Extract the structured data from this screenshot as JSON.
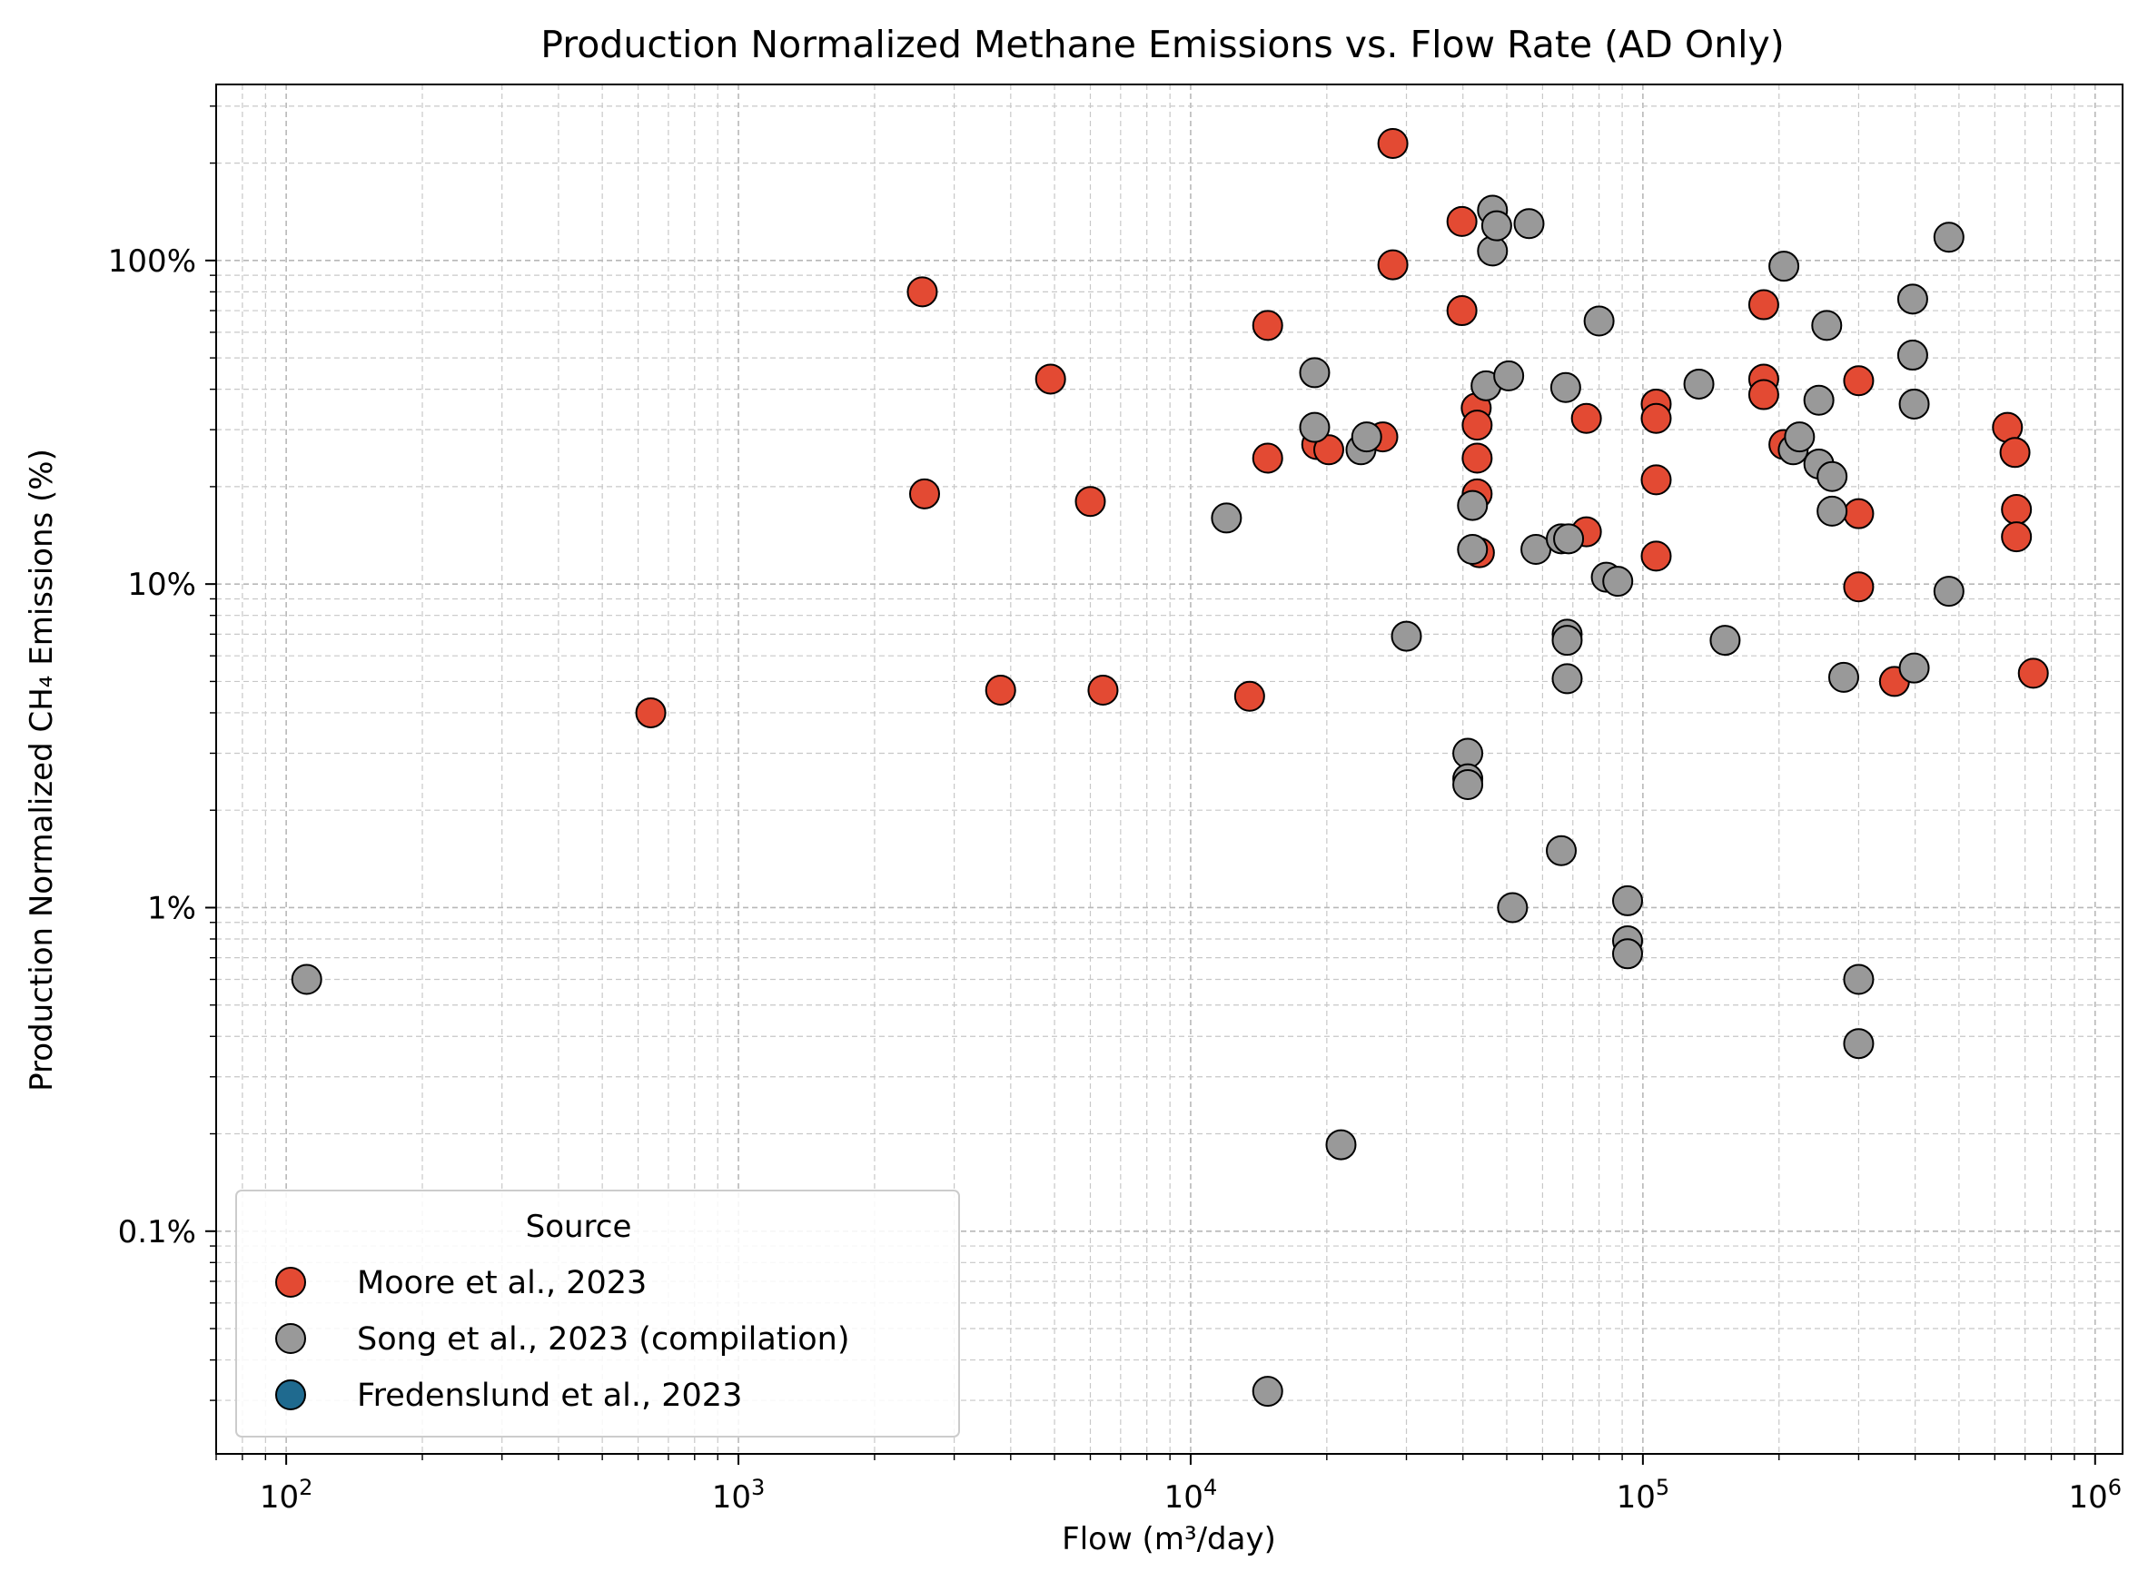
{
  "chart_data": {
    "type": "scatter",
    "title": "Production Normalized Methane Emissions vs. Flow Rate (AD Only)",
    "xlabel": "Flow (m³/day)",
    "ylabel": "Production Normalized CH₄ Emissions (%)",
    "xscale": "log",
    "yscale": "log",
    "xlim": [
      70,
      1150000
    ],
    "ylim": [
      0.0205,
      350
    ],
    "grid": true,
    "x_ticks": [
      {
        "value": 100,
        "base": "10",
        "exp": "2"
      },
      {
        "value": 1000,
        "base": "10",
        "exp": "3"
      },
      {
        "value": 10000,
        "base": "10",
        "exp": "4"
      },
      {
        "value": 100000,
        "base": "10",
        "exp": "5"
      },
      {
        "value": 1000000,
        "base": "10",
        "exp": "6"
      }
    ],
    "y_ticks": [
      {
        "value": 0.1,
        "label": "0.1%"
      },
      {
        "value": 1,
        "label": "1%"
      },
      {
        "value": 10,
        "label": "10%"
      },
      {
        "value": 100,
        "label": "100%"
      }
    ],
    "legend": {
      "title": "Source",
      "position": "lower-left"
    },
    "series": [
      {
        "name": "Moore et al., 2023",
        "color": "#e34a33",
        "points": [
          [
            640,
            4.0
          ],
          [
            2550,
            80
          ],
          [
            2580,
            19
          ],
          [
            3800,
            4.7
          ],
          [
            4900,
            43
          ],
          [
            6000,
            18
          ],
          [
            6400,
            4.7
          ],
          [
            13500,
            4.5
          ],
          [
            14800,
            63
          ],
          [
            14800,
            24.5
          ],
          [
            19000,
            27
          ],
          [
            20200,
            26
          ],
          [
            26600,
            28.5
          ],
          [
            28000,
            230
          ],
          [
            28000,
            97
          ],
          [
            39800,
            132
          ],
          [
            39800,
            70
          ],
          [
            42800,
            35
          ],
          [
            43000,
            31
          ],
          [
            43000,
            24.5
          ],
          [
            43000,
            19
          ],
          [
            43500,
            12.5
          ],
          [
            75000,
            32.5
          ],
          [
            75000,
            14.5
          ],
          [
            107000,
            36
          ],
          [
            107000,
            32.5
          ],
          [
            107000,
            21
          ],
          [
            107000,
            12.2
          ],
          [
            185000,
            73
          ],
          [
            185000,
            43
          ],
          [
            185000,
            38.5
          ],
          [
            205000,
            27
          ],
          [
            300000,
            42.5
          ],
          [
            300000,
            16.5
          ],
          [
            300000,
            9.8
          ],
          [
            360000,
            5.0
          ],
          [
            640000,
            30.5
          ],
          [
            665000,
            25.5
          ],
          [
            670000,
            17
          ],
          [
            670000,
            14
          ],
          [
            730000,
            5.3
          ]
        ]
      },
      {
        "name": "Song et al., 2023 (compilation)",
        "color": "#999999",
        "points": [
          [
            111,
            0.6
          ],
          [
            12000,
            16
          ],
          [
            14800,
            0.032
          ],
          [
            18800,
            45
          ],
          [
            18800,
            30.5
          ],
          [
            21500,
            0.185
          ],
          [
            23800,
            26
          ],
          [
            24500,
            28.5
          ],
          [
            30000,
            6.9
          ],
          [
            41000,
            3.0
          ],
          [
            41000,
            2.5
          ],
          [
            41000,
            2.4
          ],
          [
            42000,
            17.5
          ],
          [
            42000,
            12.8
          ],
          [
            45000,
            41
          ],
          [
            46500,
            143
          ],
          [
            46500,
            107
          ],
          [
            47500,
            128
          ],
          [
            50500,
            44
          ],
          [
            51500,
            1.0
          ],
          [
            56000,
            130
          ],
          [
            58000,
            12.8
          ],
          [
            66000,
            1.5
          ],
          [
            66000,
            13.8
          ],
          [
            67500,
            40.5
          ],
          [
            68000,
            7.0
          ],
          [
            68000,
            6.7
          ],
          [
            68000,
            5.1
          ],
          [
            68500,
            13.8
          ],
          [
            80000,
            65
          ],
          [
            83000,
            10.5
          ],
          [
            88000,
            10.2
          ],
          [
            92500,
            1.05
          ],
          [
            92500,
            0.79
          ],
          [
            92500,
            0.72
          ],
          [
            133000,
            41.5
          ],
          [
            152000,
            6.7
          ],
          [
            205000,
            96
          ],
          [
            215000,
            26
          ],
          [
            222000,
            28.5
          ],
          [
            245000,
            37
          ],
          [
            245000,
            23.5
          ],
          [
            255000,
            63
          ],
          [
            262000,
            21.5
          ],
          [
            262000,
            16.8
          ],
          [
            278000,
            5.15
          ],
          [
            300000,
            0.6
          ],
          [
            300000,
            0.38
          ],
          [
            395000,
            76
          ],
          [
            395000,
            51
          ],
          [
            398000,
            36
          ],
          [
            398000,
            5.5
          ],
          [
            475000,
            118
          ],
          [
            475000,
            9.5
          ]
        ]
      },
      {
        "name": "Fredenslund et al., 2023",
        "color": "#1f6a8f",
        "points": []
      }
    ]
  }
}
